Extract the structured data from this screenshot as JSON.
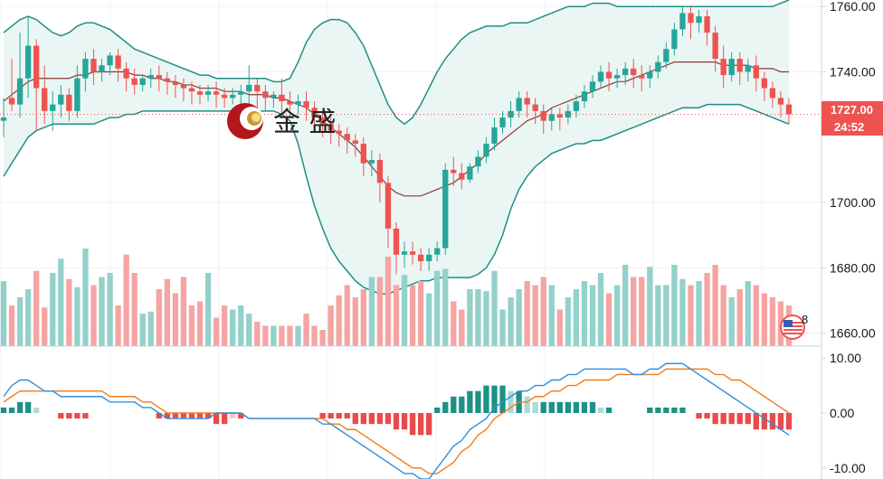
{
  "watermark": {
    "logo_icon": "jinsheng-coin-logo",
    "text": "金 盛"
  },
  "price_badge": {
    "price": "1727.00",
    "countdown": "24:52"
  },
  "event_badge": {
    "icon": "us-flag-event-icon",
    "count": "8"
  },
  "colors": {
    "up": "#26a69a",
    "down": "#ef5350",
    "up_volume": "#93d1cb",
    "down_volume": "#f4a5a3",
    "band_line": "#1f8f83",
    "band_fill": "#e8f5f3",
    "mid_line": "#8b3a33",
    "macd": "#2f8fdf",
    "signal": "#f07c1b",
    "hist_up_strong": "#1e9186",
    "hist_up_weak": "#a8dcd6",
    "hist_down_strong": "#e94b4b",
    "hist_down_weak": "#f7c6cc",
    "badge_bg": "#ef5350",
    "grid": "#eef0f3",
    "axis_line": "#d1d4dc"
  },
  "chart_data": [
    {
      "type": "candlestick",
      "y_ticks": [
        "1760.00",
        "1740.00",
        "1700.00",
        "1680.00",
        "1660.00"
      ],
      "ylim": [
        1656,
        1762
      ],
      "last_price": 1727.0,
      "candles": [
        [
          1725,
          1732,
          1726,
          1720
        ],
        [
          1732,
          1744,
          1730,
          1728
        ],
        [
          1730,
          1752,
          1738,
          1726
        ],
        [
          1738,
          1757,
          1748,
          1732
        ],
        [
          1748,
          1750,
          1735,
          1722
        ],
        [
          1735,
          1742,
          1728,
          1724
        ],
        [
          1728,
          1734,
          1730,
          1722
        ],
        [
          1730,
          1736,
          1733,
          1726
        ],
        [
          1733,
          1735,
          1728,
          1725
        ],
        [
          1728,
          1742,
          1738,
          1726
        ],
        [
          1738,
          1746,
          1744,
          1734
        ],
        [
          1744,
          1747,
          1740,
          1736
        ],
        [
          1740,
          1744,
          1742,
          1737
        ],
        [
          1742,
          1746,
          1745,
          1739
        ],
        [
          1745,
          1747,
          1741,
          1737
        ],
        [
          1741,
          1743,
          1738,
          1734
        ],
        [
          1738,
          1741,
          1736,
          1733
        ],
        [
          1736,
          1739,
          1738,
          1734
        ],
        [
          1738,
          1741,
          1739,
          1735
        ],
        [
          1739,
          1742,
          1738,
          1734
        ],
        [
          1738,
          1740,
          1737,
          1733
        ],
        [
          1737,
          1739,
          1736,
          1732
        ],
        [
          1736,
          1738,
          1735,
          1731
        ],
        [
          1735,
          1737,
          1734,
          1730
        ],
        [
          1734,
          1736,
          1733,
          1730
        ],
        [
          1733,
          1736,
          1734,
          1731
        ],
        [
          1734,
          1737,
          1733,
          1729
        ],
        [
          1733,
          1735,
          1732,
          1729
        ],
        [
          1732,
          1735,
          1733,
          1730
        ],
        [
          1733,
          1736,
          1734,
          1730
        ],
        [
          1734,
          1742,
          1736,
          1730
        ],
        [
          1736,
          1738,
          1734,
          1728
        ],
        [
          1734,
          1736,
          1732,
          1728
        ],
        [
          1732,
          1734,
          1733,
          1729
        ],
        [
          1733,
          1738,
          1731,
          1727
        ],
        [
          1731,
          1734,
          1730,
          1726
        ],
        [
          1730,
          1733,
          1731,
          1727
        ],
        [
          1731,
          1734,
          1729,
          1725
        ],
        [
          1729,
          1731,
          1726,
          1722
        ],
        [
          1726,
          1728,
          1724,
          1720
        ],
        [
          1724,
          1726,
          1722,
          1718
        ],
        [
          1722,
          1724,
          1721,
          1717
        ],
        [
          1721,
          1723,
          1719,
          1715
        ],
        [
          1719,
          1721,
          1718,
          1714
        ],
        [
          1718,
          1720,
          1712,
          1708
        ],
        [
          1712,
          1716,
          1713,
          1708
        ],
        [
          1713,
          1715,
          1706,
          1700
        ],
        [
          1706,
          1708,
          1692,
          1686
        ],
        [
          1692,
          1694,
          1684,
          1678
        ],
        [
          1684,
          1688,
          1685,
          1680
        ],
        [
          1685,
          1688,
          1684,
          1681
        ],
        [
          1684,
          1686,
          1682,
          1679
        ],
        [
          1682,
          1686,
          1684,
          1679
        ],
        [
          1684,
          1688,
          1686,
          1682
        ],
        [
          1686,
          1712,
          1710,
          1684
        ],
        [
          1710,
          1714,
          1709,
          1705
        ],
        [
          1709,
          1712,
          1707,
          1704
        ],
        [
          1707,
          1712,
          1711,
          1706
        ],
        [
          1711,
          1716,
          1714,
          1709
        ],
        [
          1714,
          1720,
          1718,
          1712
        ],
        [
          1718,
          1726,
          1723,
          1716
        ],
        [
          1723,
          1728,
          1726,
          1721
        ],
        [
          1726,
          1731,
          1728,
          1723
        ],
        [
          1728,
          1734,
          1732,
          1726
        ],
        [
          1732,
          1734,
          1730,
          1726
        ],
        [
          1730,
          1732,
          1728,
          1724
        ],
        [
          1728,
          1730,
          1725,
          1721
        ],
        [
          1725,
          1729,
          1727,
          1722
        ],
        [
          1727,
          1729,
          1726,
          1722
        ],
        [
          1726,
          1730,
          1728,
          1724
        ],
        [
          1728,
          1733,
          1731,
          1726
        ],
        [
          1731,
          1736,
          1734,
          1729
        ],
        [
          1734,
          1739,
          1737,
          1732
        ],
        [
          1737,
          1742,
          1740,
          1735
        ],
        [
          1740,
          1743,
          1738,
          1734
        ],
        [
          1738,
          1741,
          1739,
          1735
        ],
        [
          1739,
          1743,
          1741,
          1736
        ],
        [
          1741,
          1744,
          1739,
          1735
        ],
        [
          1739,
          1742,
          1738,
          1734
        ],
        [
          1738,
          1742,
          1740,
          1735
        ],
        [
          1740,
          1745,
          1743,
          1738
        ],
        [
          1743,
          1749,
          1747,
          1741
        ],
        [
          1747,
          1755,
          1753,
          1745
        ],
        [
          1753,
          1760,
          1758,
          1751
        ],
        [
          1758,
          1760,
          1755,
          1750
        ],
        [
          1755,
          1759,
          1757,
          1752
        ],
        [
          1757,
          1759,
          1752,
          1748
        ],
        [
          1752,
          1754,
          1744,
          1740
        ],
        [
          1744,
          1748,
          1739,
          1735
        ],
        [
          1739,
          1746,
          1744,
          1737
        ],
        [
          1744,
          1746,
          1740,
          1736
        ],
        [
          1740,
          1744,
          1742,
          1737
        ],
        [
          1742,
          1745,
          1738,
          1734
        ],
        [
          1738,
          1740,
          1735,
          1731
        ],
        [
          1735,
          1737,
          1732,
          1729
        ],
        [
          1732,
          1734,
          1730,
          1726
        ],
        [
          1730,
          1732,
          1727,
          1724
        ]
      ],
      "volume": [
        32,
        20,
        24,
        28,
        37,
        19,
        36,
        43,
        33,
        29,
        48,
        30,
        34,
        36,
        20,
        45,
        36,
        16,
        17,
        28,
        33,
        26,
        34,
        20,
        22,
        36,
        14,
        20,
        18,
        20,
        16,
        12,
        10,
        10,
        10,
        10,
        10,
        16,
        10,
        8,
        20,
        25,
        30,
        24,
        28,
        34,
        34,
        44,
        30,
        35,
        30,
        32,
        26,
        37,
        38,
        22,
        18,
        28,
        28,
        27,
        37,
        18,
        24,
        28,
        32,
        30,
        34,
        30,
        18,
        24,
        28,
        32,
        30,
        36,
        26,
        30,
        40,
        34,
        34,
        39,
        30,
        30,
        40,
        33,
        30,
        32,
        36,
        40,
        30,
        24,
        28,
        32,
        30,
        26,
        24,
        22,
        20
      ],
      "volume_max": 60,
      "bollinger": {
        "upper": [
          1752,
          1754,
          1756,
          1757,
          1756,
          1754,
          1752,
          1751,
          1752,
          1754,
          1755,
          1755,
          1754,
          1753,
          1751,
          1749,
          1747,
          1746,
          1745,
          1744,
          1743,
          1742,
          1741,
          1740,
          1739,
          1739,
          1738,
          1738,
          1738,
          1738,
          1738,
          1738,
          1738,
          1737,
          1737,
          1738,
          1743,
          1749,
          1753,
          1755,
          1756,
          1756,
          1755,
          1752,
          1748,
          1742,
          1736,
          1730,
          1726,
          1724,
          1726,
          1730,
          1735,
          1740,
          1744,
          1747,
          1750,
          1752,
          1753,
          1754,
          1754,
          1754,
          1755,
          1755,
          1755,
          1756,
          1757,
          1758,
          1759,
          1760,
          1760,
          1760,
          1761,
          1761,
          1761,
          1760,
          1760,
          1760,
          1760,
          1760,
          1760,
          1760,
          1760,
          1760,
          1760,
          1760,
          1760,
          1760,
          1760,
          1760,
          1760,
          1760,
          1760,
          1760,
          1760,
          1761,
          1762
        ],
        "mid": [
          1731,
          1733,
          1735,
          1737,
          1738,
          1738,
          1738,
          1738,
          1738,
          1739,
          1739,
          1740,
          1740,
          1740,
          1740,
          1740,
          1739,
          1739,
          1738,
          1738,
          1737,
          1737,
          1736,
          1736,
          1735,
          1735,
          1735,
          1734,
          1734,
          1734,
          1733,
          1733,
          1733,
          1732,
          1732,
          1731,
          1730,
          1729,
          1727,
          1725,
          1723,
          1721,
          1719,
          1717,
          1714,
          1711,
          1708,
          1705,
          1703,
          1702,
          1702,
          1702,
          1703,
          1704,
          1705,
          1706,
          1708,
          1710,
          1712,
          1715,
          1717,
          1719,
          1721,
          1723,
          1725,
          1726,
          1727,
          1729,
          1730,
          1731,
          1732,
          1733,
          1734,
          1735,
          1736,
          1737,
          1737,
          1738,
          1739,
          1740,
          1741,
          1742,
          1743,
          1743,
          1743,
          1743,
          1743,
          1743,
          1742,
          1742,
          1742,
          1742,
          1741,
          1741,
          1741,
          1740,
          1740
        ],
        "lower": [
          1708,
          1712,
          1716,
          1720,
          1722,
          1723,
          1724,
          1724,
          1724,
          1724,
          1724,
          1724,
          1725,
          1726,
          1726,
          1727,
          1727,
          1728,
          1728,
          1728,
          1728,
          1728,
          1728,
          1728,
          1728,
          1728,
          1728,
          1728,
          1728,
          1728,
          1728,
          1728,
          1728,
          1728,
          1727,
          1725,
          1718,
          1708,
          1699,
          1692,
          1686,
          1682,
          1679,
          1676,
          1674,
          1673,
          1672,
          1672,
          1673,
          1674,
          1675,
          1676,
          1676,
          1677,
          1677,
          1677,
          1677,
          1677,
          1678,
          1680,
          1684,
          1690,
          1698,
          1704,
          1708,
          1711,
          1713,
          1715,
          1716,
          1717,
          1718,
          1718,
          1719,
          1719,
          1720,
          1721,
          1722,
          1723,
          1724,
          1725,
          1726,
          1727,
          1728,
          1729,
          1729,
          1729,
          1730,
          1730,
          1730,
          1730,
          1730,
          1729,
          1728,
          1727,
          1726,
          1725,
          1724
        ]
      }
    },
    {
      "type": "macd",
      "y_ticks": [
        "10.00",
        "0.00",
        "-10.00"
      ],
      "ylim": [
        -12,
        12
      ],
      "macd": [
        3,
        5,
        6,
        6,
        5,
        4,
        4,
        3,
        3,
        3,
        3,
        3,
        3,
        2,
        2,
        2,
        2,
        1,
        1,
        0,
        -1,
        -1,
        -1,
        -1,
        -1,
        -1,
        0,
        0,
        0,
        0,
        -1,
        -1,
        -1,
        -1,
        -1,
        -1,
        -1,
        -1,
        -1,
        -2,
        -2,
        -3,
        -4,
        -5,
        -6,
        -7,
        -8,
        -9,
        -10,
        -11,
        -11,
        -12,
        -12,
        -10,
        -8,
        -6,
        -5,
        -3,
        -2,
        -1,
        1,
        2,
        3,
        4,
        4,
        5,
        5,
        6,
        6,
        7,
        7,
        8,
        8,
        8,
        8,
        8,
        8,
        7,
        7,
        8,
        8,
        9,
        9,
        9,
        8,
        7,
        6,
        5,
        4,
        3,
        2,
        1,
        0,
        -1,
        -2,
        -3,
        -4
      ],
      "signal": [
        2,
        3,
        4,
        4,
        4,
        4,
        4,
        4,
        4,
        4,
        4,
        4,
        4,
        3,
        3,
        3,
        3,
        2,
        2,
        1,
        0,
        0,
        0,
        0,
        0,
        0,
        0,
        0,
        0,
        0,
        -1,
        -1,
        -1,
        -1,
        -1,
        -1,
        -1,
        -1,
        -1,
        -1,
        -2,
        -2,
        -3,
        -3,
        -4,
        -5,
        -6,
        -7,
        -8,
        -9,
        -10,
        -10,
        -11,
        -11,
        -10,
        -9,
        -7,
        -6,
        -4,
        -3,
        -1,
        0,
        1,
        2,
        2,
        3,
        3,
        4,
        4,
        5,
        5,
        6,
        6,
        6,
        6,
        7,
        7,
        7,
        7,
        7,
        7,
        8,
        8,
        8,
        8,
        8,
        8,
        7,
        7,
        6,
        6,
        5,
        4,
        3,
        2,
        1,
        0
      ],
      "histogram": [
        1,
        1,
        2,
        2,
        1,
        0,
        0,
        -1,
        -1,
        -1,
        -1,
        0,
        0,
        0,
        0,
        0,
        0,
        0,
        0,
        -1,
        -1,
        -1,
        -1,
        -1,
        -1,
        -1,
        -2,
        -2,
        -1,
        -1,
        0,
        0,
        0,
        0,
        0,
        0,
        0,
        0,
        0,
        -1,
        -1,
        -1,
        -1,
        -2,
        -2,
        -2,
        -2,
        -2,
        -3,
        -3,
        -4,
        -4,
        -4,
        1,
        2,
        3,
        3,
        4,
        4,
        5,
        5,
        5,
        4,
        4,
        3,
        2,
        2,
        2,
        2,
        2,
        2,
        2,
        2,
        1,
        1,
        0,
        0,
        0,
        0,
        1,
        1,
        1,
        1,
        1,
        0,
        -1,
        -1,
        -2,
        -2,
        -2,
        -2,
        -2,
        -3,
        -3,
        -3,
        -3,
        -3
      ]
    }
  ]
}
